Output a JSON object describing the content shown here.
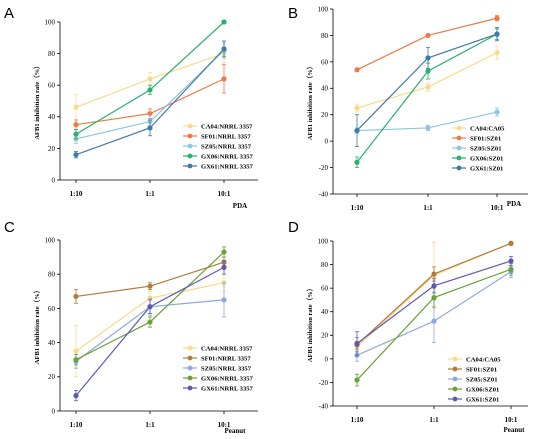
{
  "chart_data": [
    {
      "panel": "A",
      "type": "line",
      "categories": [
        "1:10",
        "1:1",
        "10:1"
      ],
      "ylabel": "AFB1 inhibition rate（%）",
      "xlabel": "PDA",
      "ylim": [
        0,
        100
      ],
      "yticks": [
        0,
        20,
        40,
        60,
        80,
        100
      ],
      "legend_position": "bottom-right",
      "series": [
        {
          "name": "CA04:NRRL 3357",
          "color": "#fcd98a",
          "values": [
            46,
            64,
            80
          ],
          "errors": [
            8,
            4,
            6
          ]
        },
        {
          "name": "SF01:NRRL 3357",
          "color": "#f07846",
          "values": [
            35,
            42,
            64
          ],
          "errors": [
            3,
            3,
            9
          ]
        },
        {
          "name": "SZ05:NRRL 3357",
          "color": "#8ec7e2",
          "values": [
            26,
            37,
            82
          ],
          "errors": [
            3,
            4,
            5
          ]
        },
        {
          "name": "GX06:NRRL 3357",
          "color": "#27b169",
          "values": [
            29,
            57,
            100
          ],
          "errors": [
            3,
            3,
            0
          ]
        },
        {
          "name": "GX61:NRRL 3357",
          "color": "#3e7aa8",
          "values": [
            16,
            33,
            83
          ],
          "errors": [
            2,
            5,
            5
          ]
        }
      ]
    },
    {
      "panel": "B",
      "type": "line",
      "categories": [
        "1:10",
        "1:1",
        "10:1"
      ],
      "ylabel": "AFB1 inhibition rate（%）",
      "xlabel": "PDA",
      "ylim": [
        -40,
        100
      ],
      "yticks": [
        -40,
        -20,
        0,
        20,
        40,
        60,
        80,
        100
      ],
      "legend_position": "bottom-right",
      "series": [
        {
          "name": "CA04:CA05",
          "color": "#fcd98a",
          "values": [
            25,
            41,
            67
          ],
          "errors": [
            3,
            3,
            5
          ]
        },
        {
          "name": "SF01:SZ01",
          "color": "#f07846",
          "values": [
            54,
            80,
            93
          ],
          "errors": [
            1,
            1,
            2
          ]
        },
        {
          "name": "SZ05:SZ01",
          "color": "#8ec7e2",
          "values": [
            8,
            10,
            22
          ],
          "errors": [
            2,
            2,
            3
          ]
        },
        {
          "name": "GX06:SZ01",
          "color": "#27b169",
          "values": [
            -16,
            53,
            81
          ],
          "errors": [
            4,
            6,
            4
          ]
        },
        {
          "name": "GX61:SZ01",
          "color": "#3e7aa8",
          "values": [
            8,
            63,
            81
          ],
          "errors": [
            12,
            8,
            5
          ]
        }
      ]
    },
    {
      "panel": "C",
      "type": "line",
      "categories": [
        "1:10",
        "1:1",
        "10:1"
      ],
      "ylabel": "AFB1 inhibition rate（%）",
      "xlabel": "Peanut",
      "ylim": [
        0,
        100
      ],
      "yticks": [
        0,
        20,
        40,
        60,
        80,
        100
      ],
      "legend_position": "bottom-right",
      "series": [
        {
          "name": "CA04:NRRL 3357",
          "color": "#fcd98a",
          "values": [
            35,
            66,
            75
          ],
          "errors": [
            15,
            4,
            5
          ]
        },
        {
          "name": "SF01:NRRL 3357",
          "color": "#b07c3a",
          "values": [
            67,
            73,
            87
          ],
          "errors": [
            4,
            2,
            3
          ]
        },
        {
          "name": "SZ05:NRRL 3357",
          "color": "#8fa8e0",
          "values": [
            29,
            61,
            65
          ],
          "errors": [
            4,
            5,
            10
          ]
        },
        {
          "name": "GX06:NRRL 3357",
          "color": "#6aa13a",
          "values": [
            30,
            52,
            93
          ],
          "errors": [
            3,
            3,
            3
          ]
        },
        {
          "name": "GX61:NRRL 3357",
          "color": "#5a5ab4",
          "values": [
            9,
            61,
            84
          ],
          "errors": [
            3,
            4,
            4
          ]
        }
      ]
    },
    {
      "panel": "D",
      "type": "line",
      "categories": [
        "1:10",
        "1:1",
        "10:1"
      ],
      "ylabel": "AFB1 inhibition rate（%）",
      "xlabel": "Peanut",
      "ylim": [
        -40,
        100
      ],
      "yticks": [
        -40,
        -20,
        0,
        20,
        40,
        60,
        80,
        100
      ],
      "legend_position": "bottom-right",
      "series": [
        {
          "name": "CA04:CA05",
          "color": "#fcd98a",
          "values": [
            10,
            71,
            98
          ],
          "errors": [
            5,
            28,
            2
          ]
        },
        {
          "name": "SF01:SZ01",
          "color": "#b07c3a",
          "values": [
            12,
            72,
            98
          ],
          "errors": [
            6,
            6,
            1
          ]
        },
        {
          "name": "SZ05:SZ01",
          "color": "#8fa8e0",
          "values": [
            3,
            32,
            74
          ],
          "errors": [
            5,
            18,
            5
          ]
        },
        {
          "name": "GX06:SZ01",
          "color": "#6aa13a",
          "values": [
            -18,
            52,
            76
          ],
          "errors": [
            5,
            8,
            5
          ]
        },
        {
          "name": "GX61:SZ01",
          "color": "#5a5ab4",
          "values": [
            13,
            62,
            83
          ],
          "errors": [
            10,
            6,
            4
          ]
        }
      ]
    }
  ]
}
